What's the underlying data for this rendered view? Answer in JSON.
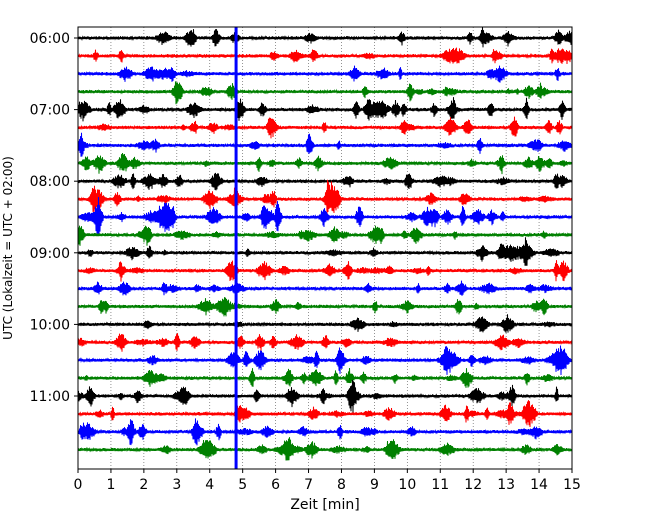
{
  "chart_data": {
    "type": "line",
    "title": "",
    "xlabel": "Zeit  [min]",
    "ylabel": "UTC (Lokalzeit = UTC + 02:00)",
    "xlim": [
      0,
      15
    ],
    "x_ticks": [
      "0",
      "1",
      "2",
      "3",
      "4",
      "5",
      "6",
      "7",
      "8",
      "9",
      "10",
      "11",
      "12",
      "13",
      "14",
      "15"
    ],
    "y_ticks": [
      "06:00",
      "07:00",
      "08:00",
      "09:00",
      "10:00",
      "11:00"
    ],
    "grid": "vertical dotted lines at each minute",
    "row_interval_min": 15,
    "first_row_start": "06:00",
    "colors": [
      "#000000",
      "#ff0000",
      "#0000ff",
      "#008000"
    ],
    "marker_line": {
      "x_min": 4.8,
      "color": "#0000ff"
    },
    "rows": [
      {
        "start": "06:00",
        "color": "#000000",
        "activity": 0.3
      },
      {
        "start": "06:15",
        "color": "#ff0000",
        "activity": 0.25
      },
      {
        "start": "06:30",
        "color": "#0000ff",
        "activity": 0.2
      },
      {
        "start": "06:45",
        "color": "#008000",
        "activity": 0.35
      },
      {
        "start": "07:00",
        "color": "#000000",
        "activity": 0.55
      },
      {
        "start": "07:15",
        "color": "#ff0000",
        "activity": 0.4
      },
      {
        "start": "07:30",
        "color": "#0000ff",
        "activity": 0.3
      },
      {
        "start": "07:45",
        "color": "#008000",
        "activity": 0.4
      },
      {
        "start": "08:00",
        "color": "#000000",
        "activity": 0.35
      },
      {
        "start": "08:15",
        "color": "#ff0000",
        "activity": 0.5
      },
      {
        "start": "08:30",
        "color": "#0000ff",
        "activity": 0.65
      },
      {
        "start": "08:45",
        "color": "#008000",
        "activity": 0.4
      },
      {
        "start": "09:00",
        "color": "#000000",
        "activity": 0.3
      },
      {
        "start": "09:15",
        "color": "#ff0000",
        "activity": 0.4
      },
      {
        "start": "09:30",
        "color": "#0000ff",
        "activity": 0.25
      },
      {
        "start": "09:45",
        "color": "#008000",
        "activity": 0.3
      },
      {
        "start": "10:00",
        "color": "#000000",
        "activity": 0.1
      },
      {
        "start": "10:15",
        "color": "#ff0000",
        "activity": 0.3
      },
      {
        "start": "10:30",
        "color": "#0000ff",
        "activity": 0.45
      },
      {
        "start": "10:45",
        "color": "#008000",
        "activity": 0.4
      },
      {
        "start": "11:00",
        "color": "#000000",
        "activity": 0.45
      },
      {
        "start": "11:15",
        "color": "#ff0000",
        "activity": 0.4
      },
      {
        "start": "11:30",
        "color": "#0000ff",
        "activity": 0.4
      },
      {
        "start": "11:45",
        "color": "#008000",
        "activity": 0.35
      }
    ]
  }
}
